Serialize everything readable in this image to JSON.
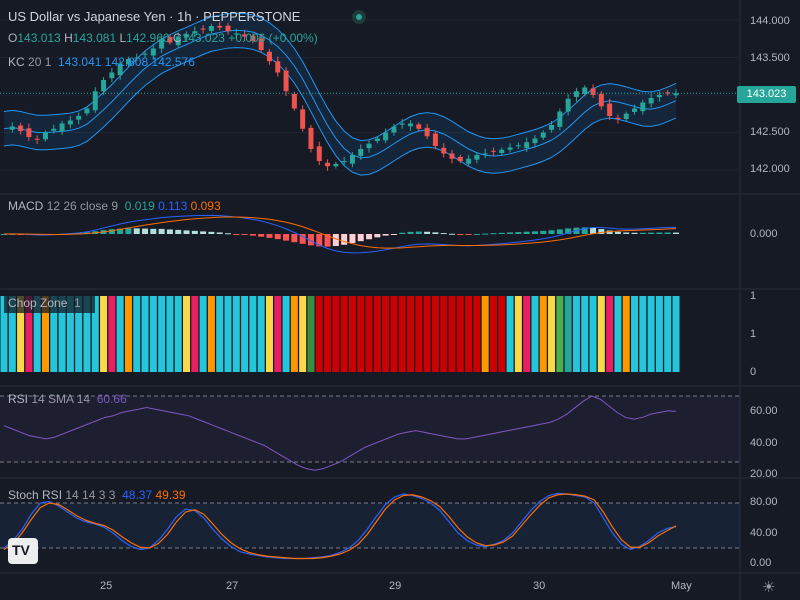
{
  "header": {
    "title": "US Dollar vs Japanese Yen · 1h · PEPPERSTONE",
    "ohlc": {
      "o_label": "O",
      "o_value": "143.013",
      "h_label": "H",
      "h_value": "143.081",
      "l_label": "L",
      "l_value": "142.960",
      "c_label": "C",
      "c_value": "143.023",
      "change": "+0.006 (+0.00%)"
    }
  },
  "colors": {
    "up": "#26a69a",
    "down": "#ef5350",
    "keltner": "#2196f3",
    "macd_line": "#2962ff",
    "signal_line": "#ff6d00",
    "rsi_line": "#7e57c2",
    "stoch_k": "#2962ff",
    "stoch_d": "#ff6d00"
  },
  "indicators": {
    "kc": {
      "name": "KC",
      "params": "20 1",
      "v1": "143.041",
      "v2": "142.808",
      "v3": "142.576"
    },
    "macd": {
      "name": "MACD",
      "params": "12 26 close 9",
      "v1": "0.019",
      "v2": "0.113",
      "v3": "0.093"
    },
    "chop": {
      "name": "Chop Zone",
      "value": "1"
    },
    "rsi": {
      "name": "RSI",
      "params": "14 SMA 14",
      "v1": "60.66"
    },
    "stoch": {
      "name": "Stoch RSI",
      "params": "14 14 3 3",
      "v1": "48.37",
      "v2": "49.39"
    }
  },
  "price_axis": {
    "ticks": [
      "144.000",
      "143.500",
      "143.000",
      "142.500",
      "142.000"
    ],
    "last_price": "143.023"
  },
  "macd_axis": {
    "ticks": [
      "0.000"
    ]
  },
  "chop_axis": {
    "ticks": [
      "1",
      "1",
      "0"
    ]
  },
  "rsi_axis": {
    "ticks": [
      "60.00",
      "40.00",
      "20.00"
    ]
  },
  "stoch_axis": {
    "ticks": [
      "80.00",
      "40.00",
      "0.00"
    ]
  },
  "time_axis": {
    "ticks": [
      "25",
      "27",
      "29",
      "30",
      "May"
    ]
  },
  "logo": {
    "text": "TV"
  },
  "chart_data": {
    "type": "candlestick",
    "title": "US Dollar vs Japanese Yen · 1h · PEPPERSTONE",
    "x_ticks": [
      "25",
      "27",
      "29",
      "30",
      "May"
    ],
    "price_range": [
      141.8,
      144.1
    ],
    "close_path": [
      142.55,
      142.58,
      142.52,
      142.44,
      142.41,
      142.5,
      142.55,
      142.62,
      142.66,
      142.72,
      142.82,
      143.05,
      143.2,
      143.3,
      143.42,
      143.48,
      143.5,
      143.55,
      143.62,
      143.75,
      143.7,
      143.78,
      143.81,
      143.85,
      143.88,
      143.92,
      143.9,
      143.85,
      143.82,
      143.78,
      143.72,
      143.6,
      143.45,
      143.3,
      143.05,
      142.82,
      142.55,
      142.28,
      142.12,
      142.05,
      142.08,
      142.12,
      142.2,
      142.28,
      142.35,
      142.42,
      142.5,
      142.58,
      142.62,
      142.62,
      142.55,
      142.45,
      142.32,
      142.22,
      142.15,
      142.12,
      142.15,
      142.2,
      142.22,
      142.25,
      142.27,
      142.3,
      142.33,
      142.37,
      142.42,
      142.5,
      142.6,
      142.78,
      142.95,
      143.05,
      143.1,
      143.0,
      142.85,
      142.72,
      142.68,
      142.75,
      142.82,
      142.9,
      142.96,
      143.0,
      143.02,
      143.023
    ],
    "rsi_path": [
      52,
      50,
      48,
      46,
      45,
      44,
      45,
      47,
      49,
      51,
      53,
      55,
      57,
      58,
      60,
      61,
      62,
      63,
      62,
      61,
      60,
      59,
      58,
      56,
      54,
      52,
      50,
      48,
      46,
      44,
      42,
      40,
      37,
      34,
      31,
      28,
      26,
      25,
      26,
      28,
      30,
      33,
      36,
      39,
      41,
      43,
      45,
      47,
      48,
      49,
      48,
      47,
      46,
      45,
      44,
      44,
      45,
      46,
      47,
      48,
      49,
      50,
      51,
      52,
      53,
      54,
      56,
      59,
      63,
      67,
      70,
      68,
      64,
      60,
      57,
      56,
      57,
      59,
      60,
      61,
      60.66
    ],
    "stoch_k_path": [
      20,
      30,
      45,
      65,
      80,
      82,
      76,
      68,
      60,
      55,
      52,
      48,
      40,
      30,
      22,
      18,
      20,
      30,
      45,
      62,
      72,
      70,
      60,
      45,
      32,
      22,
      15,
      12,
      10,
      8,
      7,
      6,
      6,
      6,
      7,
      8,
      10,
      14,
      20,
      30,
      45,
      62,
      78,
      88,
      92,
      90,
      86,
      80,
      70,
      55,
      40,
      30,
      24,
      22,
      25,
      30,
      40,
      55,
      70,
      82,
      90,
      93,
      92,
      90,
      88,
      80,
      60,
      40,
      25,
      18,
      22,
      30,
      40,
      46,
      48.37
    ],
    "stoch_d_path": [
      18,
      26,
      40,
      58,
      74,
      80,
      78,
      71,
      63,
      57,
      53,
      50,
      44,
      35,
      27,
      21,
      20,
      26,
      38,
      55,
      68,
      71,
      65,
      52,
      38,
      27,
      19,
      14,
      11,
      9,
      8,
      7,
      6,
      6,
      6,
      7,
      9,
      12,
      17,
      25,
      38,
      55,
      72,
      84,
      90,
      91,
      88,
      83,
      75,
      62,
      47,
      35,
      27,
      23,
      24,
      28,
      36,
      50,
      64,
      77,
      87,
      91,
      92,
      91,
      89,
      84,
      68,
      48,
      31,
      21,
      21,
      27,
      36,
      43,
      49.39
    ],
    "rsi_levels": [
      70,
      30
    ],
    "stoch_levels": [
      80,
      20
    ]
  }
}
